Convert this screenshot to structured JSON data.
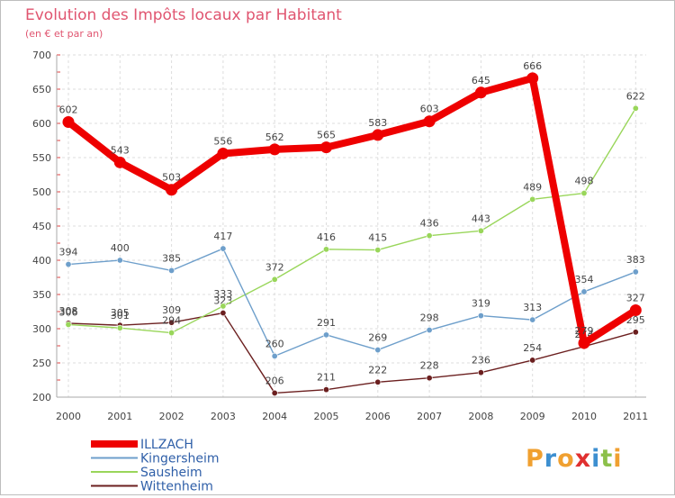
{
  "chart_data": {
    "type": "line",
    "title": "Evolution des Impôts locaux par Habitant",
    "subtitle": "(en € et par an)",
    "xlabel": "",
    "ylabel": "",
    "ylim": [
      200,
      700
    ],
    "yticks": [
      "200",
      "250",
      "300",
      "350",
      "400",
      "450",
      "500",
      "550",
      "600",
      "650",
      "700"
    ],
    "categories": [
      "2000",
      "2001",
      "2002",
      "2003",
      "2004",
      "2005",
      "2006",
      "2007",
      "2008",
      "2009",
      "2010",
      "2011"
    ],
    "grid": true,
    "legend": "bottom-left",
    "series": [
      {
        "name": "Wittenheim",
        "color": "#6b1f1f",
        "values": [
          308,
          305,
          309,
          323,
          206,
          211,
          222,
          228,
          236,
          254,
          274,
          295
        ]
      },
      {
        "name": "Sausheim",
        "color": "#99d65a",
        "values": [
          306,
          301,
          294,
          333,
          372,
          416,
          415,
          436,
          443,
          489,
          498,
          622
        ]
      },
      {
        "name": "Kingersheim",
        "color": "#6e9fcb",
        "values": [
          394,
          400,
          385,
          417,
          260,
          291,
          269,
          298,
          319,
          313,
          354,
          383
        ]
      },
      {
        "name": "ILLZACH",
        "color": "#ee0000",
        "values": [
          602,
          543,
          503,
          556,
          562,
          565,
          583,
          603,
          645,
          666,
          279,
          327
        ]
      }
    ],
    "legend_order": [
      "ILLZACH",
      "Kingersheim",
      "Sausheim",
      "Wittenheim"
    ]
  },
  "title_color": "#e05570",
  "logo": {
    "text": "Proxiti"
  }
}
